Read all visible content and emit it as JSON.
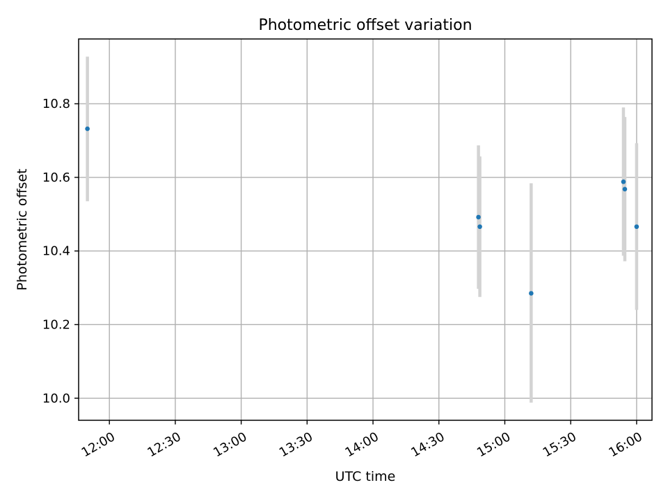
{
  "chart_data": {
    "type": "scatter",
    "title": "Photometric offset variation",
    "xlabel": "UTC time",
    "ylabel": "Photometric offset",
    "grid": true,
    "xlim": [
      "11:46",
      "16:07"
    ],
    "ylim": [
      9.94,
      10.976
    ],
    "x_ticks": [
      "12:00",
      "12:30",
      "13:00",
      "13:30",
      "14:00",
      "14:30",
      "15:00",
      "15:30",
      "16:00"
    ],
    "y_ticks": [
      10.0,
      10.2,
      10.4,
      10.6,
      10.8
    ],
    "y_tick_labels": [
      "10.0",
      "10.2",
      "10.4",
      "10.6",
      "10.8"
    ],
    "points": [
      {
        "x": "11:50",
        "y": 10.732,
        "ymin": 10.535,
        "ymax": 10.928
      },
      {
        "x": "14:48",
        "y": 10.492,
        "ymin": 10.297,
        "ymax": 10.687
      },
      {
        "x": "14:48",
        "y": 10.466,
        "ymin": 10.275,
        "ymax": 10.657
      },
      {
        "x": "15:12",
        "y": 10.285,
        "ymin": 9.988,
        "ymax": 10.584
      },
      {
        "x": "15:54",
        "y": 10.588,
        "ymin": 10.387,
        "ymax": 10.79
      },
      {
        "x": "15:54",
        "y": 10.568,
        "ymin": 10.372,
        "ymax": 10.764
      },
      {
        "x": "16:00",
        "y": 10.466,
        "ymin": 10.24,
        "ymax": 10.693
      }
    ],
    "colors": {
      "point": "#1f77b4",
      "errorbar": "#d3d3d3"
    }
  }
}
